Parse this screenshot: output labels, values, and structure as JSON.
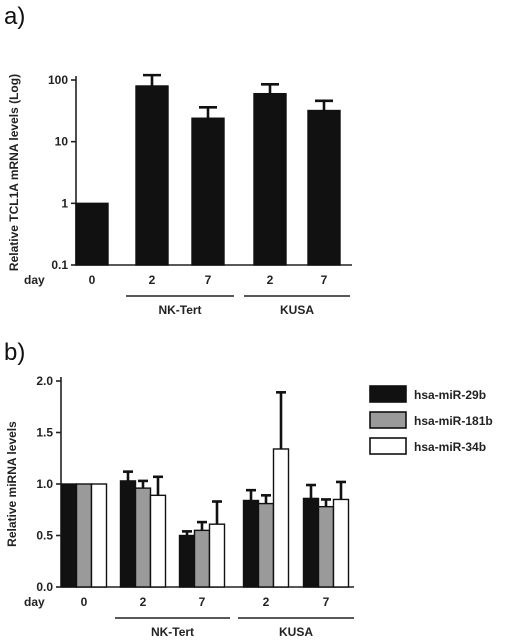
{
  "panels": {
    "a": {
      "label": "a)"
    },
    "b": {
      "label": "b)"
    }
  },
  "chart_data": [
    {
      "type": "bar",
      "panel": "a)",
      "scale": "log",
      "ylabel": "Relative TCL1A mRNA levels (Log)",
      "ylim": [
        0.1,
        100
      ],
      "yticks": [
        "0.1",
        "1",
        "10",
        "100"
      ],
      "x_prefix": "day",
      "categories": [
        "0",
        "2",
        "7",
        "2",
        "7"
      ],
      "groups": [
        {
          "name": "NK-Tert",
          "span": [
            1,
            2
          ]
        },
        {
          "name": "KUSA",
          "span": [
            3,
            4
          ]
        }
      ],
      "series": [
        {
          "values": [
            1,
            80,
            24,
            60,
            32
          ],
          "errors": [
            0,
            40,
            12,
            25,
            14
          ],
          "color": "#111111"
        }
      ],
      "grid": false
    },
    {
      "type": "bar",
      "panel": "b)",
      "ylabel": "Relative miRNA levels",
      "ylim": [
        0,
        2.0
      ],
      "yticks": [
        "0.0",
        "0.5",
        "1.0",
        "1.5",
        "2.0"
      ],
      "x_prefix": "day",
      "categories": [
        "0",
        "2",
        "7",
        "2",
        "7"
      ],
      "groups": [
        {
          "name": "NK-Tert",
          "span": [
            1,
            2
          ]
        },
        {
          "name": "KUSA",
          "span": [
            3,
            4
          ]
        }
      ],
      "series": [
        {
          "name": "hsa-miR-29b",
          "color": "#111111",
          "values": [
            1.0,
            1.03,
            0.5,
            0.84,
            0.86
          ],
          "errors": [
            0,
            0.09,
            0.04,
            0.1,
            0.13
          ]
        },
        {
          "name": "hsa-miR-181b",
          "color": "#9a9a9a",
          "values": [
            1.0,
            0.96,
            0.55,
            0.81,
            0.78
          ],
          "errors": [
            0,
            0.07,
            0.08,
            0.08,
            0.07
          ]
        },
        {
          "name": "hsa-miR-34b",
          "color": "#ffffff",
          "values": [
            1.0,
            0.89,
            0.61,
            1.34,
            0.85
          ],
          "errors": [
            0,
            0.18,
            0.22,
            0.55,
            0.17
          ]
        }
      ],
      "legend": "right",
      "grid": false
    }
  ]
}
